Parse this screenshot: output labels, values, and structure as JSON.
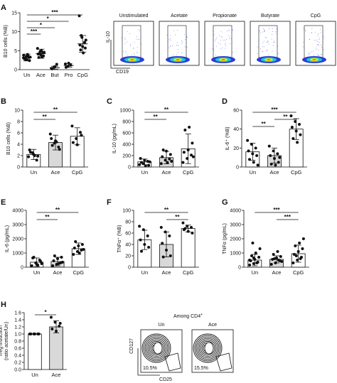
{
  "figure": {
    "dot_color": "#111111",
    "bar_fill_un": "#ffffff",
    "bar_fill_grey": "#d9d9d9",
    "flow_colors": [
      "#2b3fd6",
      "#22c3d6",
      "#f2e600",
      "#f07d1a"
    ]
  },
  "flow_a": {
    "ylabel": "IL-10",
    "xlabel": "CD19",
    "panels": [
      "Unstimulated",
      "Acetate",
      "Propionate",
      "Butyrate",
      "CpG"
    ]
  },
  "flow_h": {
    "header": "Among CD4",
    "header_sup": "+",
    "ylabel": "CD127",
    "xlabel": "CD25",
    "panels": [
      {
        "title": "Un",
        "pct": "10.5%"
      },
      {
        "title": "Ace",
        "pct": "15.5%"
      }
    ]
  },
  "chart_data": [
    {
      "panel": "A",
      "type": "scatter",
      "ylabel": "B10 cells (%B)",
      "categories": [
        "Un",
        "Ace",
        "But",
        "Pro",
        "CpG"
      ],
      "ylim": [
        0,
        15
      ],
      "yticks": [
        0,
        5,
        10,
        15
      ],
      "means": [
        3.2,
        4.2,
        0.5,
        1.1,
        6.8
      ],
      "sd": [
        0.9,
        1.2,
        0.4,
        0.5,
        2.2
      ],
      "points": [
        [
          3.8,
          3.5,
          3.2,
          2.9,
          2.6,
          2.4,
          3.0,
          4.0,
          3.3,
          2.7,
          3.6,
          3.1
        ],
        [
          5.6,
          4.8,
          4.4,
          4.1,
          3.9,
          3.6,
          3.2,
          5.0,
          4.6,
          4.3,
          3.4
        ],
        [
          0.3,
          0.6,
          1.4,
          0.2,
          0.8
        ],
        [
          1.5,
          0.9,
          1.2,
          0.6,
          1.7
        ],
        [
          14.2,
          8.5,
          7.2,
          6.5,
          6.1,
          5.7,
          5.2,
          4.4,
          7.8,
          9.0
        ]
      ],
      "significance": [
        {
          "from": 0,
          "to": 4,
          "label": "***"
        },
        {
          "from": 0,
          "to": 3,
          "label": "*"
        },
        {
          "from": 0,
          "to": 2,
          "label": "*"
        },
        {
          "from": 0,
          "to": 1,
          "label": "***"
        }
      ],
      "grey": []
    },
    {
      "panel": "B",
      "type": "bar",
      "ylabel": "B10 cells (%B)",
      "categories": [
        "Un",
        "Ace",
        "CpG"
      ],
      "ylim": [
        0,
        10
      ],
      "yticks": [
        0,
        2,
        4,
        6,
        8,
        10
      ],
      "means": [
        2.2,
        4.3,
        5.4
      ],
      "sd": [
        0.9,
        1.3,
        1.5
      ],
      "points": [
        [
          1.8,
          2.5,
          1.2,
          3.0,
          2.2,
          1.9,
          2.6,
          2.0
        ],
        [
          5.8,
          4.2,
          3.5,
          5.0,
          4.6,
          3.1,
          3.8,
          4.4
        ],
        [
          7.2,
          5.0,
          6.1,
          4.3,
          3.9,
          5.6
        ]
      ],
      "significance": [
        {
          "from": 0,
          "to": 2,
          "label": "**"
        },
        {
          "from": 0,
          "to": 1,
          "label": "**"
        }
      ],
      "grey": [
        1
      ]
    },
    {
      "panel": "C",
      "type": "bar",
      "ylabel": "IL-10 (pg/mL)",
      "categories": [
        "Un",
        "Ace",
        "CpG"
      ],
      "ylim": [
        0,
        1000
      ],
      "yticks": [
        0,
        200,
        400,
        600,
        800,
        1000
      ],
      "means": [
        90,
        165,
        320
      ],
      "sd": [
        50,
        110,
        260
      ],
      "points": [
        [
          40,
          60,
          100,
          150,
          120,
          30,
          80,
          20,
          90
        ],
        [
          60,
          120,
          140,
          180,
          280,
          220,
          300,
          80,
          100
        ],
        [
          80,
          150,
          210,
          260,
          300,
          420,
          650,
          700,
          180
        ]
      ],
      "significance": [
        {
          "from": 0,
          "to": 2,
          "label": "**"
        },
        {
          "from": 0,
          "to": 1,
          "label": "**"
        }
      ],
      "grey": [
        1
      ]
    },
    {
      "panel": "D",
      "type": "bar",
      "ylabel": "IL-6⁺ (%B)",
      "categories": [
        "Un",
        "Ace",
        "CpG"
      ],
      "ylim": [
        0,
        60
      ],
      "yticks": [
        0,
        20,
        40,
        60
      ],
      "means": [
        16,
        12,
        40
      ],
      "sd": [
        9,
        8,
        11
      ],
      "points": [
        [
          28,
          24,
          20,
          17,
          14,
          12,
          8,
          5,
          2
        ],
        [
          22,
          17,
          14,
          12,
          9,
          5,
          3,
          2,
          10
        ],
        [
          54,
          48,
          45,
          42,
          38,
          34,
          30,
          26
        ]
      ],
      "significance": [
        {
          "from": 0,
          "to": 2,
          "label": "***"
        },
        {
          "from": 1,
          "to": 2,
          "label": "**"
        },
        {
          "from": 0,
          "to": 1,
          "label": "**"
        }
      ],
      "grey": [
        1
      ]
    },
    {
      "panel": "E",
      "type": "bar",
      "ylabel": "IL-6 (pg/mL)",
      "categories": [
        "Un",
        "Ace",
        "CpG"
      ],
      "ylim": [
        0,
        4000
      ],
      "yticks": [
        0,
        1000,
        2000,
        3000,
        4000
      ],
      "means": [
        350,
        400,
        1300
      ],
      "sd": [
        300,
        300,
        400
      ],
      "points": [
        [
          100,
          300,
          500,
          650,
          200,
          400,
          700,
          150,
          250
        ],
        [
          100,
          200,
          300,
          450,
          600,
          700,
          800,
          250,
          350
        ],
        [
          900,
          1100,
          1200,
          1350,
          1500,
          1600,
          1800,
          1000,
          1250
        ]
      ],
      "significance": [
        {
          "from": 0,
          "to": 2,
          "label": "**"
        },
        {
          "from": 0,
          "to": 1,
          "label": "**"
        }
      ],
      "grey": [
        1
      ]
    },
    {
      "panel": "F",
      "type": "bar",
      "ylabel": "TNFα⁺ (%B)",
      "categories": [
        "Un",
        "Ace",
        "CpG"
      ],
      "ylim": [
        0,
        100
      ],
      "yticks": [
        0,
        20,
        40,
        60,
        80,
        100
      ],
      "means": [
        48,
        40,
        68
      ],
      "sd": [
        17,
        22,
        6
      ],
      "points": [
        [
          72,
          66,
          55,
          48,
          40,
          35,
          28
        ],
        [
          70,
          62,
          55,
          42,
          30,
          20,
          18
        ],
        [
          78,
          72,
          70,
          66,
          63,
          60,
          68
        ]
      ],
      "significance": [
        {
          "from": 0,
          "to": 2,
          "label": "**"
        },
        {
          "from": 1,
          "to": 2,
          "label": "**"
        }
      ],
      "grey": [
        1
      ]
    },
    {
      "panel": "G",
      "type": "bar",
      "ylabel": "TNFα (pg/mL)",
      "categories": [
        "Un",
        "Ace",
        "CpG"
      ],
      "ylim": [
        0,
        4000
      ],
      "yticks": [
        0,
        1000,
        2000,
        3000,
        4000
      ],
      "means": [
        500,
        550,
        950
      ],
      "sd": [
        400,
        250,
        600
      ],
      "points": [
        [
          150,
          250,
          350,
          450,
          550,
          700,
          800,
          1000,
          1300,
          1700,
          300,
          500,
          650
        ],
        [
          200,
          300,
          450,
          550,
          650,
          750,
          900,
          1100,
          400,
          600,
          500
        ],
        [
          300,
          500,
          700,
          900,
          1100,
          1300,
          1500,
          1700,
          2000,
          800,
          600
        ]
      ],
      "significance": [
        {
          "from": 0,
          "to": 2,
          "label": "***"
        },
        {
          "from": 1,
          "to": 2,
          "label": "***"
        }
      ],
      "grey": [
        1
      ]
    },
    {
      "panel": "H",
      "type": "bar",
      "ylabel": "Treg induction\n(ratio acetate/Un)",
      "categories": [
        "Un",
        "Ace"
      ],
      "ylim": [
        0,
        1.6
      ],
      "yticks": [
        0.0,
        0.2,
        0.4,
        0.6,
        0.8,
        1.0,
        1.2,
        1.4,
        1.6
      ],
      "means": [
        1.0,
        1.2
      ],
      "sd": [
        0.0,
        0.17
      ],
      "points": [
        [
          1.0,
          1.0,
          1.0,
          1.0,
          1.0,
          1.0
        ],
        [
          1.47,
          1.33,
          1.22,
          1.14,
          1.08,
          1.3
        ]
      ],
      "significance": [
        {
          "from": 0,
          "to": 1,
          "label": "*"
        }
      ],
      "grey": [
        1
      ]
    }
  ]
}
